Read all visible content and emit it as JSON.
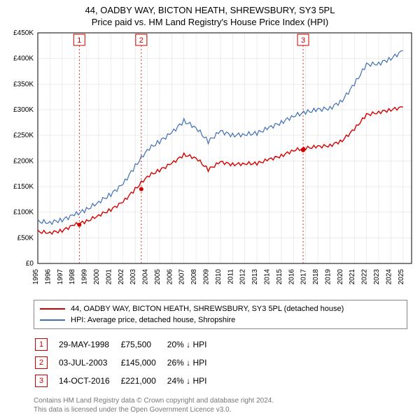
{
  "title": {
    "main": "44, OADBY WAY, BICTON HEATH, SHREWSBURY, SY3 5PL",
    "sub": "Price paid vs. HM Land Registry's House Price Index (HPI)"
  },
  "chart": {
    "type": "line",
    "background_color": "#ffffff",
    "grid_color": "#bdbdbd",
    "axis_color": "#000000",
    "x_years": [
      1995,
      1996,
      1997,
      1998,
      1999,
      2000,
      2001,
      2002,
      2003,
      2004,
      2005,
      2006,
      2007,
      2008,
      2009,
      2010,
      2011,
      2012,
      2013,
      2014,
      2015,
      2016,
      2017,
      2018,
      2019,
      2020,
      2021,
      2022,
      2023,
      2024,
      2025
    ],
    "y_ticks": [
      0,
      50000,
      100000,
      150000,
      200000,
      250000,
      300000,
      350000,
      400000,
      450000
    ],
    "y_tick_labels": [
      "£0",
      "£50K",
      "£100K",
      "£150K",
      "£200K",
      "£250K",
      "£300K",
      "£350K",
      "£400K",
      "£450K"
    ],
    "ylim": [
      0,
      450000
    ],
    "xlim": [
      1995,
      2025.7
    ],
    "series": [
      {
        "name": "property",
        "label": "44, OADBY WAY, BICTON HEATH, SHREWSBURY, SY3 5PL (detached house)",
        "color": "#d40000",
        "width": 1.4,
        "data_yearly": [
          [
            1995,
            62000
          ],
          [
            1996,
            60000
          ],
          [
            1997,
            64000
          ],
          [
            1998,
            75500
          ],
          [
            1999,
            82000
          ],
          [
            2000,
            94000
          ],
          [
            2001,
            105000
          ],
          [
            2002,
            120000
          ],
          [
            2003,
            145000
          ],
          [
            2004,
            170000
          ],
          [
            2005,
            182000
          ],
          [
            2006,
            195000
          ],
          [
            2007,
            212000
          ],
          [
            2008,
            206000
          ],
          [
            2009,
            183000
          ],
          [
            2010,
            198000
          ],
          [
            2011,
            193000
          ],
          [
            2012,
            195000
          ],
          [
            2013,
            195000
          ],
          [
            2014,
            203000
          ],
          [
            2015,
            210000
          ],
          [
            2016,
            221000
          ],
          [
            2017,
            225000
          ],
          [
            2018,
            228000
          ],
          [
            2019,
            230000
          ],
          [
            2020,
            240000
          ],
          [
            2021,
            262000
          ],
          [
            2022,
            290000
          ],
          [
            2023,
            295000
          ],
          [
            2024,
            300000
          ],
          [
            2025,
            305000
          ]
        ]
      },
      {
        "name": "hpi",
        "label": "HPI: Average price, detached house, Shropshire",
        "color": "#3f6fb5",
        "width": 1.2,
        "data_yearly": [
          [
            1995,
            82000
          ],
          [
            1996,
            80000
          ],
          [
            1997,
            85000
          ],
          [
            1998,
            95000
          ],
          [
            1999,
            105000
          ],
          [
            2000,
            120000
          ],
          [
            2001,
            135000
          ],
          [
            2002,
            155000
          ],
          [
            2003,
            190000
          ],
          [
            2004,
            222000
          ],
          [
            2005,
            238000
          ],
          [
            2006,
            255000
          ],
          [
            2007,
            278000
          ],
          [
            2008,
            265000
          ],
          [
            2009,
            238000
          ],
          [
            2010,
            258000
          ],
          [
            2011,
            250000
          ],
          [
            2012,
            252000
          ],
          [
            2013,
            254000
          ],
          [
            2014,
            265000
          ],
          [
            2015,
            275000
          ],
          [
            2016,
            288000
          ],
          [
            2017,
            295000
          ],
          [
            2018,
            300000
          ],
          [
            2019,
            303000
          ],
          [
            2020,
            318000
          ],
          [
            2021,
            350000
          ],
          [
            2022,
            388000
          ],
          [
            2023,
            390000
          ],
          [
            2024,
            400000
          ],
          [
            2025,
            415000
          ]
        ]
      }
    ],
    "marker_lines_color": "#cc0000",
    "marker_box_border": "#cc0000",
    "marker_box_text": "#cc0000",
    "sale_markers": [
      {
        "n": "1",
        "x": 1998.41,
        "y": 75500
      },
      {
        "n": "2",
        "x": 2003.5,
        "y": 145000
      },
      {
        "n": "3",
        "x": 2016.79,
        "y": 221000
      }
    ]
  },
  "legend": {
    "items": [
      {
        "color": "#d40000",
        "label": "44, OADBY WAY, BICTON HEATH, SHREWSBURY, SY3 5PL (detached house)"
      },
      {
        "color": "#3f6fb5",
        "label": "HPI: Average price, detached house, Shropshire"
      }
    ]
  },
  "sales_table": {
    "rows": [
      {
        "n": "1",
        "date": "29-MAY-1998",
        "price": "£75,500",
        "delta": "20% ↓ HPI"
      },
      {
        "n": "2",
        "date": "03-JUL-2003",
        "price": "£145,000",
        "delta": "26% ↓ HPI"
      },
      {
        "n": "3",
        "date": "14-OCT-2016",
        "price": "£221,000",
        "delta": "24% ↓ HPI"
      }
    ]
  },
  "footer": {
    "line1": "Contains HM Land Registry data © Crown copyright and database right 2024.",
    "line2": "This data is licensed under the Open Government Licence v3.0."
  }
}
